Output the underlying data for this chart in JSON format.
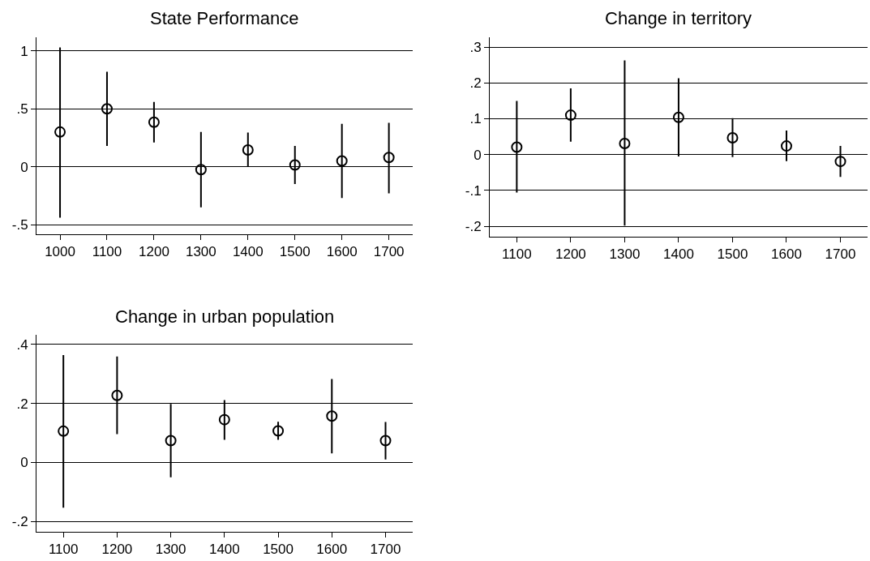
{
  "chart_data": [
    {
      "type": "scatter",
      "title": "State Performance",
      "x": [
        1000,
        1100,
        1200,
        1300,
        1400,
        1500,
        1600,
        1700
      ],
      "series": [
        {
          "color": "#000000",
          "values": [
            0.3,
            0.5,
            0.385,
            -0.025,
            0.145,
            0.015,
            0.05,
            0.08
          ],
          "errors": [
            [
              -0.44,
              1.03
            ],
            [
              0.18,
              0.82
            ],
            [
              0.21,
              0.56
            ],
            [
              -0.35,
              0.3
            ],
            [
              0.0,
              0.295
            ],
            [
              -0.15,
              0.18
            ],
            [
              -0.27,
              0.37
            ],
            [
              -0.23,
              0.38
            ]
          ]
        }
      ],
      "xlim": [
        950,
        1750
      ],
      "xticks": [
        1000,
        1100,
        1200,
        1300,
        1400,
        1500,
        1600,
        1700
      ],
      "ylim": [
        -0.58,
        1.12
      ],
      "yticks": [
        {
          "value": -0.5,
          "label": "-.5"
        },
        0,
        {
          "value": 0.5,
          "label": ".5"
        },
        1
      ],
      "grid": "y",
      "marker": "circle"
    },
    {
      "type": "scatter",
      "title": "Change in territory",
      "x": [
        1100,
        1200,
        1300,
        1400,
        1500,
        1600,
        1700
      ],
      "series": [
        {
          "color": "#000000",
          "values": [
            0.021,
            0.11,
            0.031,
            0.104,
            0.047,
            0.024,
            -0.019
          ],
          "errors": [
            [
              -0.106,
              0.15
            ],
            [
              0.036,
              0.185
            ],
            [
              -0.198,
              0.263
            ],
            [
              -0.005,
              0.213
            ],
            [
              -0.007,
              0.102
            ],
            [
              -0.018,
              0.067
            ],
            [
              -0.062,
              0.024
            ]
          ]
        }
      ],
      "xlim": [
        1050,
        1750
      ],
      "xticks": [
        1100,
        1200,
        1300,
        1400,
        1500,
        1600,
        1700
      ],
      "ylim": [
        -0.229,
        0.328
      ],
      "yticks": [
        {
          "value": -0.2,
          "label": "-.2"
        },
        {
          "value": -0.1,
          "label": "-.1"
        },
        0,
        {
          "value": 0.1,
          "label": ".1"
        },
        {
          "value": 0.2,
          "label": ".2"
        },
        {
          "value": 0.3,
          "label": ".3"
        }
      ],
      "grid": "y",
      "marker": "circle"
    },
    {
      "type": "scatter",
      "title": "Change in urban population",
      "x": [
        1100,
        1200,
        1300,
        1400,
        1500,
        1600,
        1700
      ],
      "series": [
        {
          "color": "#000000",
          "values": [
            0.106,
            0.227,
            0.074,
            0.145,
            0.107,
            0.157,
            0.074
          ],
          "errors": [
            [
              -0.153,
              0.364
            ],
            [
              0.096,
              0.359
            ],
            [
              -0.05,
              0.198
            ],
            [
              0.077,
              0.211
            ],
            [
              0.077,
              0.138
            ],
            [
              0.031,
              0.283
            ],
            [
              0.01,
              0.137
            ]
          ]
        }
      ],
      "xlim": [
        1050,
        1750
      ],
      "xticks": [
        1100,
        1200,
        1300,
        1400,
        1500,
        1600,
        1700
      ],
      "ylim": [
        -0.235,
        0.432
      ],
      "yticks": [
        {
          "value": -0.2,
          "label": "-.2"
        },
        0,
        {
          "value": 0.2,
          "label": ".2"
        },
        {
          "value": 0.4,
          "label": ".4"
        }
      ],
      "grid": "y",
      "marker": "circle"
    }
  ]
}
